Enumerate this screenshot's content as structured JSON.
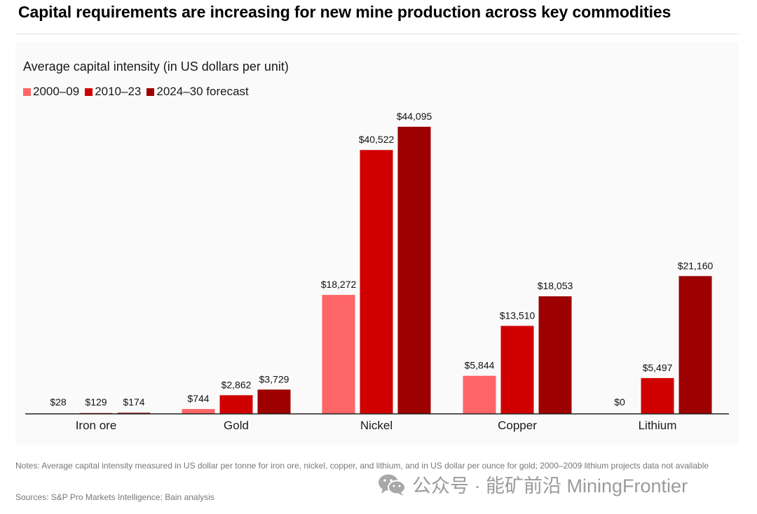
{
  "title": "Capital requirements are increasing for new mine production across key commodities",
  "subtitle": "Average capital intensity (in US dollars per unit)",
  "legend": [
    {
      "label": "2000–09",
      "color": "#fe6567"
    },
    {
      "label": "2010–23",
      "color": "#d10000"
    },
    {
      "label": "2024–30 forecast",
      "color": "#9c0000"
    }
  ],
  "chart_data": {
    "type": "bar",
    "title": "Capital requirements are increasing for new mine production across key commodities",
    "subtitle": "Average capital intensity (in US dollars per unit)",
    "categories": [
      "Iron ore",
      "Gold",
      "Nickel",
      "Copper",
      "Lithium"
    ],
    "series": [
      {
        "name": "2000–09",
        "color": "#fe6567",
        "values": [
          28,
          744,
          18272,
          5844,
          0
        ],
        "labels": [
          "$28",
          "$744",
          "$18,272",
          "$5,844",
          "$0"
        ]
      },
      {
        "name": "2010–23",
        "color": "#d10000",
        "values": [
          129,
          2862,
          40522,
          13510,
          5497
        ],
        "labels": [
          "$129",
          "$2,862",
          "$40,522",
          "$13,510",
          "$5,497"
        ]
      },
      {
        "name": "2024–30 forecast",
        "color": "#9c0000",
        "values": [
          174,
          3729,
          44095,
          18053,
          21160
        ],
        "labels": [
          "$174",
          "$3,729",
          "$44,095",
          "$18,053",
          "$21,160"
        ]
      }
    ],
    "ylim": [
      0,
      44095
    ],
    "grid": false,
    "legend_position": "top-left"
  },
  "notes": "Notes: Average capital intensity measured in US dollar per tonne for iron ore, nickel, copper, and lithium, and in US dollar per ounce for gold; 2000–2009 lithium projects data not available",
  "sources": "Sources: S&P Pro Markets Intelligence; Bain analysis",
  "watermark": {
    "text": "公众号 · 能矿前沿 MiningFrontier",
    "icon": "wechat-icon"
  }
}
